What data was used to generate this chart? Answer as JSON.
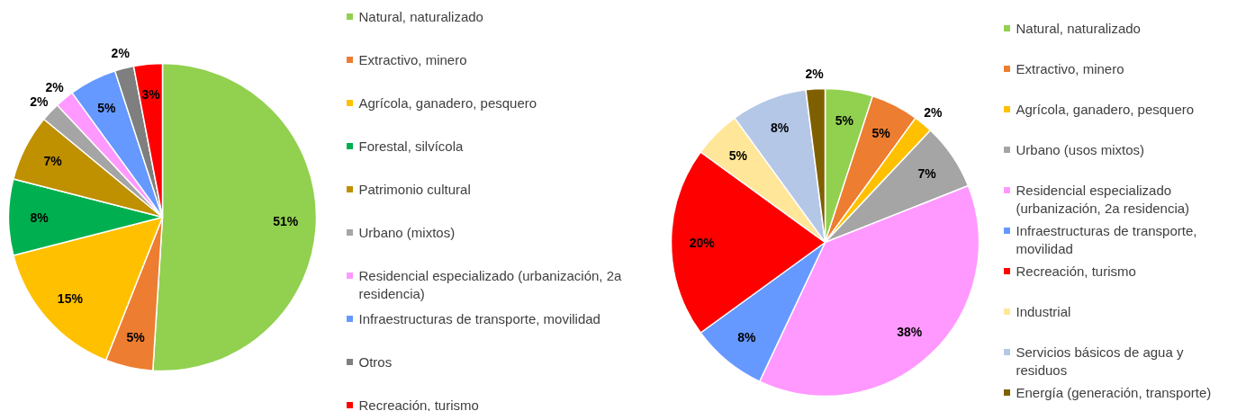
{
  "chart_data": [
    {
      "type": "pie",
      "legend": "right",
      "categories": [
        "Natural, naturalizado",
        "Extractivo, minero",
        "Agrícola, ganadero, pesquero",
        "Forestal, silvícola",
        "Patrimonio cultural",
        "Urbano (mixtos)",
        "Residencial especializado (urbanización, 2a residencia)",
        "Infraestructuras de transporte, movilidad",
        "Otros",
        "Recreación, turismo"
      ],
      "values": [
        51,
        5,
        15,
        8,
        7,
        2,
        2,
        5,
        2,
        3
      ],
      "value_labels": [
        "51%",
        "5%",
        "15%",
        "8%",
        "7%",
        "2%",
        "2%",
        "5%",
        "2%",
        "3%"
      ],
      "colors": [
        "#92d050",
        "#ed7d31",
        "#ffc000",
        "#00b050",
        "#bf9000",
        "#a5a5a5",
        "#ff99ff",
        "#6699ff",
        "#7f7f7f",
        "#ff0000"
      ]
    },
    {
      "type": "pie",
      "legend": "right",
      "categories": [
        "Natural, naturalizado",
        "Extractivo, minero",
        "Agrícola, ganadero, pesquero",
        "Urbano (usos mixtos)",
        "Residencial especializado (urbanización, 2a residencia)",
        "Infraestructuras de transporte, movilidad",
        "Recreación, turismo",
        "Industrial",
        "Servicios básicos de agua y residuos",
        "Energía (generación, transporte)"
      ],
      "values": [
        5,
        5,
        2,
        7,
        38,
        8,
        20,
        5,
        8,
        2
      ],
      "value_labels": [
        "5%",
        "5%",
        "2%",
        "7%",
        "38%",
        "8%",
        "20%",
        "5%",
        "8%",
        "2%"
      ],
      "colors": [
        "#92d050",
        "#ed7d31",
        "#ffc000",
        "#a5a5a5",
        "#ff99ff",
        "#6699ff",
        "#ff0000",
        "#ffe699",
        "#b4c7e7",
        "#7f6000"
      ]
    }
  ]
}
